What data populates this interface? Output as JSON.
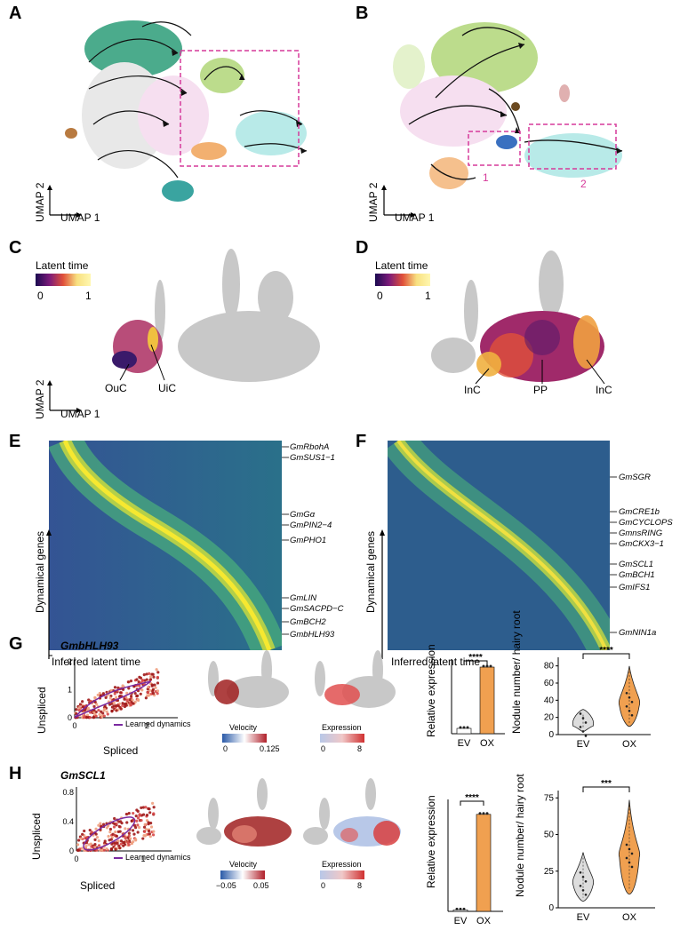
{
  "panels": {
    "A": {
      "letter": "A",
      "xlabel": "UMAP 1",
      "ylabel": "UMAP 2"
    },
    "B": {
      "letter": "B",
      "xlabel": "UMAP 1",
      "ylabel": "UMAP 2",
      "box1": "1",
      "box2": "2"
    },
    "C": {
      "letter": "C",
      "legend_title": "Latent time",
      "legend_min": "0",
      "legend_max": "1",
      "xlabel": "UMAP 1",
      "ylabel": "UMAP 2",
      "callouts": [
        "OuC",
        "UiC"
      ]
    },
    "D": {
      "letter": "D",
      "legend_title": "Latent time",
      "legend_min": "0",
      "legend_max": "1",
      "callouts": [
        "InC",
        "PP",
        "InC"
      ]
    },
    "E": {
      "letter": "E",
      "ylabel": "Dynamical genes",
      "xlabel": "Inferred latent time",
      "genes": [
        "GmRbohA",
        "GmSUS1−1",
        "GmGα",
        "GmPIN2−4",
        "GmPHO1",
        "GmLIN",
        "GmSACPD−C",
        "GmBCH2",
        "GmbHLH93"
      ]
    },
    "F": {
      "letter": "F",
      "ylabel": "Dynamical genes",
      "xlabel": "Inferred latent time",
      "genes": [
        "GmSGR",
        "GmCRE1b",
        "GmCYCLOPS",
        "GmnsRING",
        "GmCKX3−1",
        "GmSCL1",
        "GmBCH1",
        "GmIFS1",
        "GmNIN1a"
      ]
    },
    "G": {
      "letter": "G",
      "gene": "GmbHLH93",
      "xlabel": "Spliced",
      "ylabel": "Unspliced",
      "legend": "Learned dynamics",
      "velocity_title": "Velocity",
      "velocity_min": "0",
      "velocity_max": "0.125",
      "expression_title": "Expression",
      "expression_min": "0",
      "expression_max": "8",
      "rel_ylabel": "Relative expression",
      "nod_ylabel": "Nodule number/ hairy root",
      "sig1": "****",
      "sig2": "****"
    },
    "H": {
      "letter": "H",
      "gene": "GmSCL1",
      "xlabel": "Spliced",
      "ylabel": "Unspliced",
      "legend": "Learned dynamics",
      "velocity_title": "Velocity",
      "velocity_min": "−0.05",
      "velocity_max": "0.05",
      "expression_title": "Expression",
      "expression_min": "0",
      "expression_max": "8",
      "rel_ylabel": "Relative expression",
      "nod_ylabel": "Nodule number/ hairy root",
      "sig1": "****",
      "sig2": "***"
    }
  },
  "chart_data": [
    {
      "type": "scatter",
      "title": "GmbHLH93",
      "xlabel": "Spliced",
      "ylabel": "Unspliced",
      "xlim": [
        0,
        2.8
      ],
      "ylim": [
        0,
        2.1
      ],
      "xticks": [
        "0",
        "2"
      ],
      "yticks": [
        "0",
        "1",
        "2"
      ]
    },
    {
      "type": "bar",
      "title": "GmbHLH93 relative expression",
      "categories": [
        "EV",
        "OX"
      ],
      "values": [
        1,
        12.5
      ],
      "ylim": [
        0,
        14
      ],
      "ylabel": "Relative expression"
    },
    {
      "type": "violin",
      "title": "GmbHLH93 nodules",
      "categories": [
        "EV",
        "OX"
      ],
      "medians": [
        14,
        38
      ],
      "ylim": [
        0,
        90
      ],
      "yticks": [
        "0",
        "20",
        "40",
        "60",
        "80"
      ],
      "ylabel": "Nodule number/ hairy root"
    },
    {
      "type": "scatter",
      "title": "GmSCL1",
      "xlabel": "Spliced",
      "ylabel": "Unspliced",
      "xlim": [
        0,
        1.4
      ],
      "ylim": [
        0,
        0.85
      ],
      "xticks": [
        "0",
        "1"
      ],
      "yticks": [
        "0",
        "0.4",
        "0.8"
      ]
    },
    {
      "type": "bar",
      "title": "GmSCL1 relative expression",
      "categories": [
        "EV",
        "OX"
      ],
      "values": [
        1,
        65
      ],
      "ylim": [
        0,
        75
      ],
      "ylabel": "Relative expression"
    },
    {
      "type": "violin",
      "title": "GmSCL1 nodules",
      "categories": [
        "EV",
        "OX"
      ],
      "medians": [
        18,
        37
      ],
      "ylim": [
        0,
        80
      ],
      "yticks": [
        "0",
        "25",
        "50",
        "75"
      ],
      "ylabel": "Nodule number/ hairy root"
    }
  ],
  "colors": {
    "magenta": "#d63a9a",
    "orange": "#f0a050",
    "bar": "#f0a050",
    "violin_ev": "#dddddd"
  }
}
